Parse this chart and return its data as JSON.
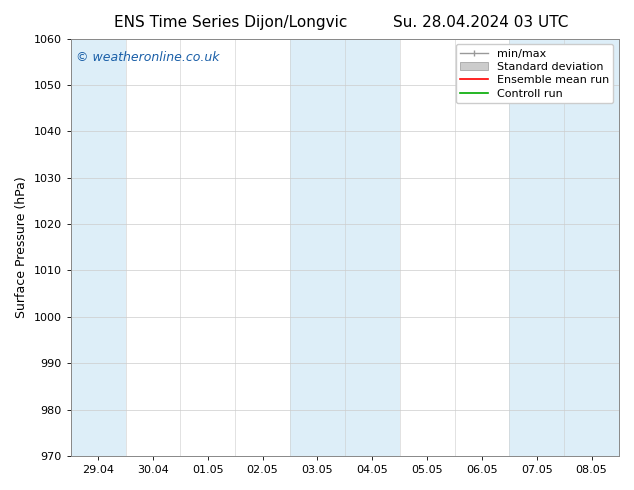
{
  "title_left": "ENS Time Series Dijon/Longvic",
  "title_right": "Su. 28.04.2024 03 UTC",
  "ylabel": "Surface Pressure (hPa)",
  "ylim": [
    970,
    1060
  ],
  "yticks": [
    970,
    980,
    990,
    1000,
    1010,
    1020,
    1030,
    1040,
    1050,
    1060
  ],
  "xlim_start": 0,
  "xlim_end": 10,
  "xtick_labels": [
    "29.04",
    "30.04",
    "01.05",
    "02.05",
    "03.05",
    "04.05",
    "05.05",
    "06.05",
    "07.05",
    "08.05"
  ],
  "xtick_positions": [
    0.5,
    1.5,
    2.5,
    3.5,
    4.5,
    5.5,
    6.5,
    7.5,
    8.5,
    9.5
  ],
  "shaded_bands": [
    {
      "x_start": 0.0,
      "x_end": 1.0
    },
    {
      "x_start": 4.0,
      "x_end": 5.0
    },
    {
      "x_start": 5.0,
      "x_end": 6.0
    },
    {
      "x_start": 8.0,
      "x_end": 9.0
    },
    {
      "x_start": 9.0,
      "x_end": 10.0
    }
  ],
  "shaded_color": "#ddeef8",
  "watermark_text": "© weatheronline.co.uk",
  "watermark_color": "#1a5fa8",
  "watermark_fontsize": 9,
  "legend_labels": [
    "min/max",
    "Standard deviation",
    "Ensemble mean run",
    "Controll run"
  ],
  "legend_colors_line": [
    "#999999",
    "#bbbbbb",
    "#ff0000",
    "#00aa00"
  ],
  "bg_color": "#ffffff",
  "plot_bg_color": "#ffffff",
  "title_fontsize": 11,
  "axis_label_fontsize": 9,
  "tick_fontsize": 8,
  "legend_fontsize": 8
}
